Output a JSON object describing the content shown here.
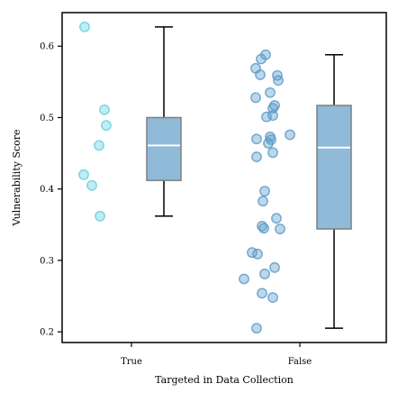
{
  "chart_data": {
    "type": "box",
    "title": "",
    "xlabel": "Targeted in Data Collection",
    "ylabel": "Vulnerability Score",
    "ylim": [
      0.185,
      0.647
    ],
    "yticks": [
      0.2,
      0.3,
      0.4,
      0.5,
      0.6
    ],
    "ytick_labels": [
      "0.2",
      "0.3",
      "0.4",
      "0.5",
      "0.6"
    ],
    "categories": [
      "True",
      "False"
    ],
    "grid": false,
    "legend": "none",
    "colors": {
      "box_fill": "#8fbad8",
      "box_edge": "#7f7f7f",
      "median": "#ffffff",
      "whisker": "#000000",
      "points_true": "#63cfe0",
      "points_false": "#5b9ac8"
    },
    "boxes": [
      {
        "category": "True",
        "whisker_low": 0.362,
        "q1": 0.412,
        "median": 0.461,
        "q3": 0.5,
        "whisker_high": 0.627
      },
      {
        "category": "False",
        "whisker_low": 0.205,
        "q1": 0.344,
        "median": 0.458,
        "q3": 0.517,
        "whisker_high": 0.588
      }
    ],
    "points": [
      {
        "category": "True",
        "values": [
          0.627,
          0.511,
          0.489,
          0.461,
          0.42,
          0.405,
          0.362
        ]
      },
      {
        "category": "False",
        "values": [
          0.588,
          0.582,
          0.569,
          0.559,
          0.56,
          0.552,
          0.535,
          0.528,
          0.517,
          0.513,
          0.503,
          0.501,
          0.476,
          0.473,
          0.47,
          0.469,
          0.464,
          0.451,
          0.445,
          0.397,
          0.383,
          0.359,
          0.348,
          0.344,
          0.345,
          0.311,
          0.309,
          0.29,
          0.281,
          0.274,
          0.254,
          0.248,
          0.205
        ]
      }
    ]
  }
}
